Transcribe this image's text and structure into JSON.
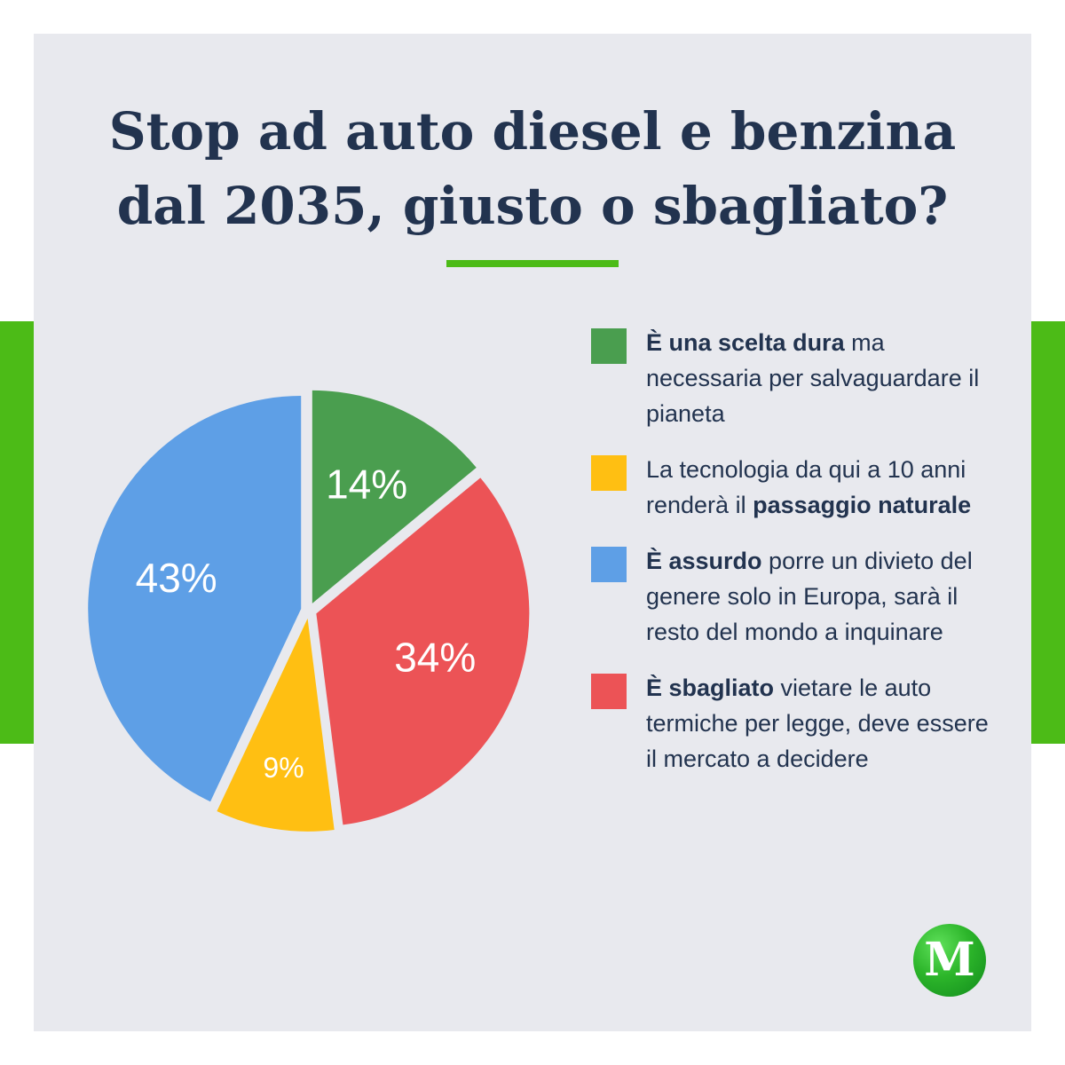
{
  "title": {
    "line1": "Stop ad auto diesel e benzina",
    "line2": "dal 2035, giusto o sbagliato?"
  },
  "colors": {
    "accent_green": "#4cbb17",
    "background": "#e8e9ee",
    "text": "#22334f"
  },
  "legend": [
    {
      "color": "#4a9e4f",
      "bold_lead": "È una scelta dura",
      "rest": " ma necessaria per salvaguardare il pianeta",
      "bold_trail": ""
    },
    {
      "color": "#ffbf12",
      "bold_lead": "",
      "rest": "La tecnologia da qui a 10 anni renderà il ",
      "bold_trail": "passaggio naturale"
    },
    {
      "color": "#5e9fe6",
      "bold_lead": "È assurdo",
      "rest": " porre un divieto del genere solo in Europa, sarà il resto del mondo a inquinare",
      "bold_trail": ""
    },
    {
      "color": "#ec5356",
      "bold_lead": "È sbagliato",
      "rest": " vietare le auto termiche per legge, deve essere il mercato a decidere",
      "bold_trail": ""
    }
  ],
  "chart_data": {
    "type": "pie",
    "title": "Stop ad auto diesel e benzina dal 2035, giusto o sbagliato?",
    "slices": [
      {
        "label": "È una scelta dura ma necessaria per salvaguardare il pianeta",
        "value": 14,
        "display": "14%",
        "color": "#4a9e4f"
      },
      {
        "label": "È sbagliato vietare le auto termiche per legge, deve essere il mercato a decidere",
        "value": 34,
        "display": "34%",
        "color": "#ec5356"
      },
      {
        "label": "La tecnologia da qui a 10 anni renderà il passaggio naturale",
        "value": 9,
        "display": "9%",
        "color": "#ffbf12"
      },
      {
        "label": "È assurdo porre un divieto del genere solo in Europa, sarà il resto del mondo a inquinare",
        "value": 43,
        "display": "43%",
        "color": "#5e9fe6"
      }
    ],
    "start_angle_deg": 0,
    "direction": "clockwise",
    "slices_exploded": true
  },
  "logo": {
    "letter": "M"
  }
}
